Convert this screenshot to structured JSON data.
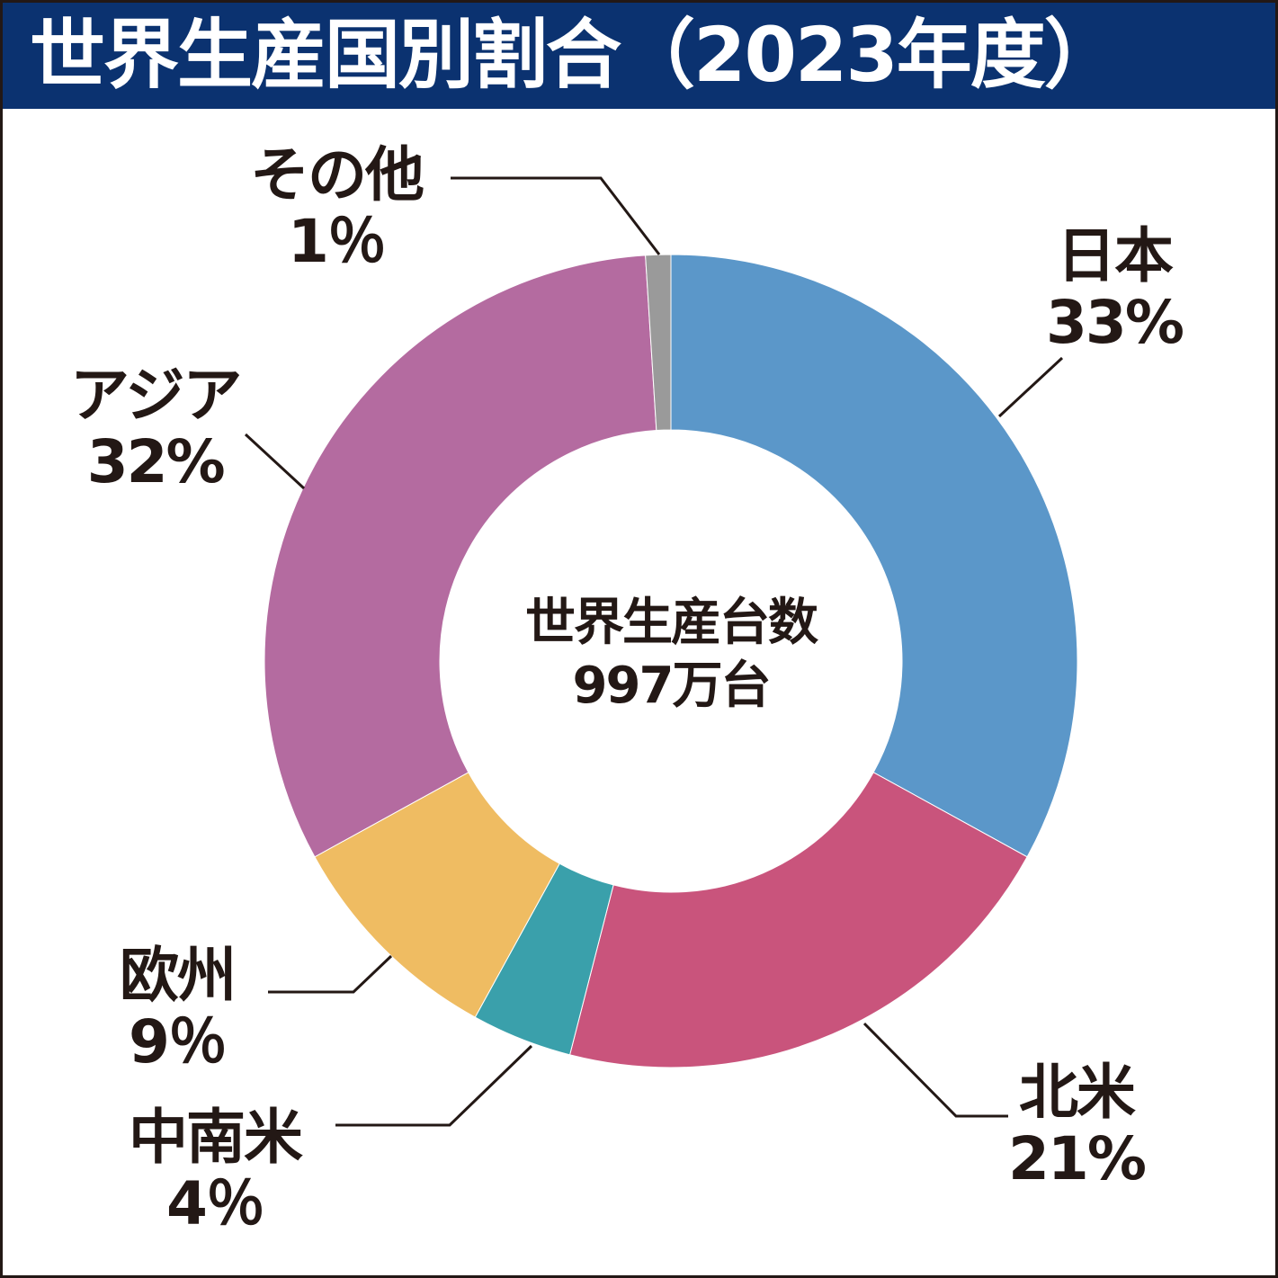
{
  "title": "世界生産国別割合（2023年度）",
  "chart_data": {
    "type": "pie",
    "subtype": "donut",
    "title": "世界生産国別割合（2023年度）",
    "center_label": "世界生産台数",
    "center_value": "997万台",
    "start": "top",
    "direction": "clockwise",
    "slices": [
      {
        "name": "日本",
        "value": 33,
        "label": "33%",
        "color": "#5b97c9"
      },
      {
        "name": "北米",
        "value": 21,
        "label": "21%",
        "color": "#c9547c"
      },
      {
        "name": "中南米",
        "value": 4,
        "label": "4％",
        "color": "#3aa0ab"
      },
      {
        "name": "欧州",
        "value": 9,
        "label": "9％",
        "color": "#efbc62"
      },
      {
        "name": "アジア",
        "value": 32,
        "label": "32%",
        "color": "#b46ba0"
      },
      {
        "name": "その他",
        "value": 1,
        "label": "1％",
        "color": "#9a9a9a"
      }
    ]
  }
}
